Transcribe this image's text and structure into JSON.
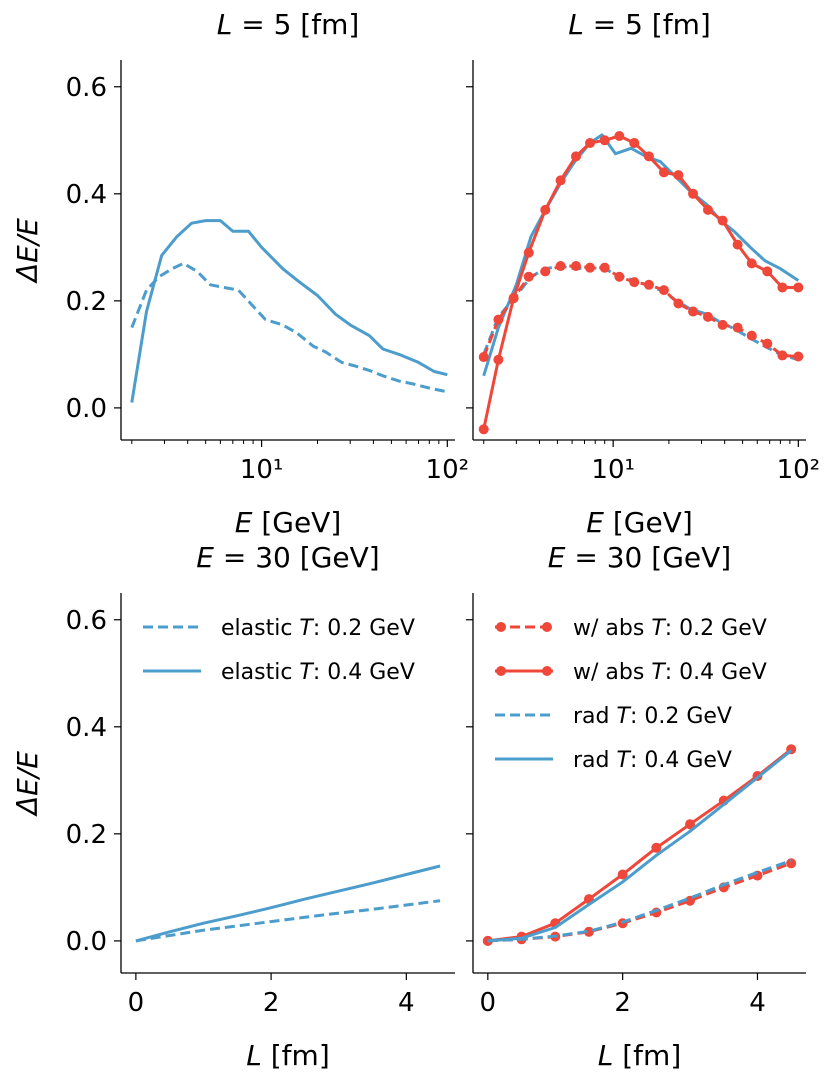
{
  "colors": {
    "blue": "#4c9ccc",
    "red": "#ef473a",
    "axis": "#000000"
  },
  "chart_data": [
    {
      "type": "line",
      "panel": "top-left",
      "title_var": "L",
      "title_rest": " = 5 [fm]",
      "xlabel_var": "E",
      "xlabel_rest": " [GeV]",
      "ylabel": "ΔE/E",
      "xscale": "log",
      "xlim": [
        1.75,
        110
      ],
      "ylim": [
        -0.06,
        0.65
      ],
      "xticks": [
        {
          "value": 10,
          "label": "10¹"
        },
        {
          "value": 100,
          "label": "10²"
        }
      ],
      "yticks": [
        {
          "value": 0.0,
          "label": "0.0"
        },
        {
          "value": 0.2,
          "label": "0.2"
        },
        {
          "value": 0.4,
          "label": "0.4"
        },
        {
          "value": 0.6,
          "label": "0.6"
        }
      ],
      "series": [
        {
          "name": "elastic T:0.2 GeV",
          "color": "blue",
          "dash": true,
          "markers": false,
          "x": [
            2,
            2.4,
            2.8,
            3.3,
            3.8,
            4.5,
            5.3,
            6.3,
            7.5,
            9,
            10.5,
            13,
            15.5,
            19,
            22,
            27,
            32,
            38,
            45,
            55,
            65,
            80,
            100
          ],
          "y": [
            0.15,
            0.22,
            0.245,
            0.26,
            0.27,
            0.255,
            0.23,
            0.225,
            0.22,
            0.19,
            0.165,
            0.155,
            0.14,
            0.115,
            0.105,
            0.085,
            0.078,
            0.07,
            0.06,
            0.05,
            0.045,
            0.037,
            0.03
          ]
        },
        {
          "name": "elastic T:0.4 GeV",
          "color": "blue",
          "dash": false,
          "markers": false,
          "x": [
            2,
            2.4,
            2.9,
            3.5,
            4.2,
            5,
            6,
            7,
            8.5,
            10,
            13,
            16,
            20,
            25,
            30,
            38,
            45,
            55,
            70,
            85,
            100
          ],
          "y": [
            0.01,
            0.18,
            0.285,
            0.32,
            0.345,
            0.35,
            0.35,
            0.33,
            0.33,
            0.3,
            0.26,
            0.235,
            0.21,
            0.175,
            0.155,
            0.135,
            0.11,
            0.1,
            0.085,
            0.068,
            0.062
          ]
        }
      ]
    },
    {
      "type": "line",
      "panel": "top-right",
      "title_var": "L",
      "title_rest": " = 5 [fm]",
      "xlabel_var": "E",
      "xlabel_rest": " [GeV]",
      "xscale": "log",
      "xlim": [
        1.75,
        110
      ],
      "ylim": [
        -0.06,
        0.65
      ],
      "xticks": [
        {
          "value": 10,
          "label": "10¹"
        },
        {
          "value": 100,
          "label": "10²"
        }
      ],
      "series": [
        {
          "name": "rad T:0.2 GeV",
          "color": "blue",
          "dash": true,
          "markers": false,
          "x": [
            2,
            2.4,
            3,
            3.6,
            4.3,
            5.2,
            6.2,
            7.5,
            9,
            10.5,
            12.5,
            15,
            18,
            22,
            26,
            32,
            38,
            45,
            55,
            66,
            80,
            100
          ],
          "y": [
            0.1,
            0.17,
            0.21,
            0.245,
            0.26,
            0.265,
            0.26,
            0.262,
            0.26,
            0.248,
            0.24,
            0.23,
            0.22,
            0.2,
            0.185,
            0.175,
            0.16,
            0.148,
            0.13,
            0.115,
            0.1,
            0.09
          ]
        },
        {
          "name": "rad T:0.4 GeV",
          "color": "blue",
          "dash": false,
          "markers": false,
          "x": [
            2,
            2.4,
            3,
            3.6,
            4.3,
            5.2,
            6.2,
            7.5,
            8.7,
            10.3,
            12.5,
            15,
            18,
            22,
            26,
            32,
            38,
            45,
            55,
            66,
            80,
            100
          ],
          "y": [
            0.06,
            0.15,
            0.23,
            0.32,
            0.37,
            0.42,
            0.46,
            0.495,
            0.51,
            0.475,
            0.485,
            0.47,
            0.46,
            0.43,
            0.405,
            0.38,
            0.35,
            0.33,
            0.3,
            0.275,
            0.26,
            0.238
          ]
        },
        {
          "name": "w/ abs T:0.2 GeV",
          "color": "red",
          "dash": true,
          "markers": true,
          "x": [
            2,
            2.4,
            2.9,
            3.5,
            4.3,
            5.2,
            6.3,
            7.5,
            9,
            10.8,
            13,
            15.6,
            18.8,
            22.5,
            27,
            32.5,
            39,
            47,
            56,
            68,
            82,
            100
          ],
          "y": [
            0.095,
            0.165,
            0.205,
            0.245,
            0.255,
            0.265,
            0.265,
            0.262,
            0.262,
            0.245,
            0.235,
            0.23,
            0.22,
            0.195,
            0.18,
            0.17,
            0.155,
            0.15,
            0.135,
            0.12,
            0.098,
            0.096
          ]
        },
        {
          "name": "w/ abs T:0.4 GeV",
          "color": "red",
          "dash": false,
          "markers": true,
          "x": [
            2,
            2.4,
            2.9,
            3.5,
            4.3,
            5.2,
            6.3,
            7.5,
            9,
            10.8,
            13,
            15.6,
            18.8,
            22.5,
            27,
            32.5,
            39,
            47,
            56,
            68,
            82,
            100
          ],
          "y": [
            -0.04,
            0.09,
            0.205,
            0.29,
            0.37,
            0.425,
            0.47,
            0.495,
            0.5,
            0.508,
            0.495,
            0.47,
            0.44,
            0.435,
            0.4,
            0.37,
            0.35,
            0.305,
            0.27,
            0.255,
            0.225,
            0.225
          ]
        }
      ]
    },
    {
      "type": "line",
      "panel": "bottom-left",
      "title_var": "E",
      "title_rest": " = 30 [GeV]",
      "xlabel_var": "L",
      "xlabel_rest": " [fm]",
      "ylabel": "ΔE/E",
      "xscale": "linear",
      "xlim": [
        -0.22,
        4.72
      ],
      "ylim": [
        -0.06,
        0.65
      ],
      "xticks": [
        {
          "value": 0,
          "label": "0"
        },
        {
          "value": 2,
          "label": "2"
        },
        {
          "value": 4,
          "label": "4"
        }
      ],
      "yticks": [
        {
          "value": 0.0,
          "label": "0.0"
        },
        {
          "value": 0.2,
          "label": "0.2"
        },
        {
          "value": 0.4,
          "label": "0.4"
        },
        {
          "value": 0.6,
          "label": "0.6"
        }
      ],
      "legend": "upper-left",
      "series": [
        {
          "name": "elastic T:0.2 GeV",
          "leg_pre": "elastic ",
          "leg_post": ": 0.2 GeV",
          "color": "blue",
          "dash": true,
          "markers": false,
          "x": [
            0,
            0.5,
            1,
            1.5,
            2,
            2.5,
            3,
            3.5,
            4,
            4.5
          ],
          "y": [
            0,
            0.01,
            0.02,
            0.028,
            0.036,
            0.044,
            0.052,
            0.059,
            0.067,
            0.075
          ]
        },
        {
          "name": "elastic T:0.4 GeV",
          "leg_pre": "elastic ",
          "leg_post": ": 0.4 GeV",
          "color": "blue",
          "dash": false,
          "markers": false,
          "x": [
            0,
            0.5,
            1,
            1.5,
            2,
            2.5,
            3,
            3.5,
            4,
            4.5
          ],
          "y": [
            0,
            0.017,
            0.033,
            0.047,
            0.062,
            0.078,
            0.093,
            0.108,
            0.124,
            0.14
          ]
        }
      ]
    },
    {
      "type": "line",
      "panel": "bottom-right",
      "title_var": "E",
      "title_rest": " = 30 [GeV]",
      "xlabel_var": "L",
      "xlabel_rest": " [fm]",
      "xscale": "linear",
      "xlim": [
        -0.22,
        4.72
      ],
      "ylim": [
        -0.06,
        0.65
      ],
      "xticks": [
        {
          "value": 0,
          "label": "0"
        },
        {
          "value": 2,
          "label": "2"
        },
        {
          "value": 4,
          "label": "4"
        }
      ],
      "legend": "upper-left",
      "series": [
        {
          "name": "w/ abs T:0.2 GeV",
          "leg_pre": "w/ abs ",
          "leg_post": ": 0.2 GeV",
          "color": "red",
          "dash": true,
          "markers": true,
          "x": [
            0,
            0.5,
            1,
            1.5,
            2,
            2.5,
            3,
            3.5,
            4,
            4.5
          ],
          "y": [
            0,
            0.003,
            0.008,
            0.017,
            0.033,
            0.053,
            0.075,
            0.1,
            0.122,
            0.145
          ]
        },
        {
          "name": "w/ abs T:0.4 GeV",
          "leg_pre": "w/ abs ",
          "leg_post": ": 0.4 GeV",
          "color": "red",
          "dash": false,
          "markers": true,
          "x": [
            0,
            0.5,
            1,
            1.5,
            2,
            2.5,
            3,
            3.5,
            4,
            4.5
          ],
          "y": [
            0,
            0.008,
            0.033,
            0.078,
            0.124,
            0.174,
            0.218,
            0.262,
            0.308,
            0.358
          ]
        },
        {
          "name": "rad T:0.2 GeV",
          "leg_pre": "rad ",
          "leg_post": ": 0.2 GeV",
          "color": "blue",
          "dash": true,
          "markers": false,
          "x": [
            0,
            0.5,
            1,
            1.5,
            2,
            2.5,
            3,
            3.5,
            4,
            4.5
          ],
          "y": [
            0,
            0.003,
            0.009,
            0.018,
            0.035,
            0.057,
            0.08,
            0.105,
            0.128,
            0.15
          ]
        },
        {
          "name": "rad T:0.4 GeV",
          "leg_pre": "rad ",
          "leg_post": ": 0.4 GeV",
          "color": "blue",
          "dash": false,
          "markers": false,
          "x": [
            0,
            0.5,
            1,
            1.5,
            2,
            2.5,
            3,
            3.5,
            4,
            4.5
          ],
          "y": [
            0,
            0.005,
            0.025,
            0.068,
            0.11,
            0.16,
            0.205,
            0.255,
            0.305,
            0.356
          ]
        }
      ]
    }
  ]
}
